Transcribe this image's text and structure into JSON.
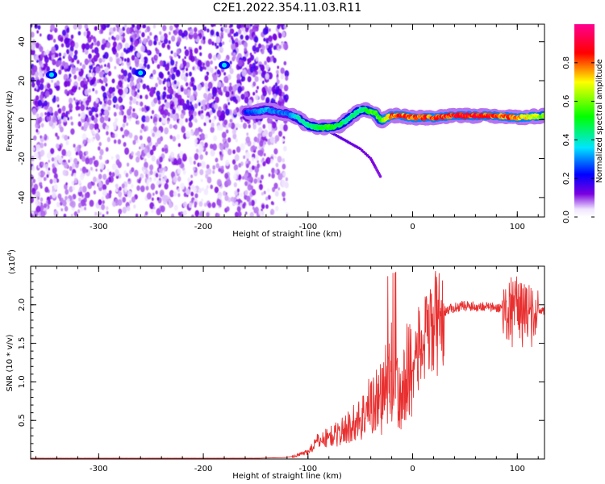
{
  "title": "C2E1.2022.354.11.03.R11",
  "chart_data": [
    {
      "type": "heatmap",
      "xlabel": "Height of straight line (km)",
      "ylabel": "Frequency (Hz)",
      "xlim": [
        -365,
        126
      ],
      "ylim": [
        -50,
        49
      ],
      "xticks": [
        -300,
        -200,
        -100,
        0,
        100
      ],
      "yticks": [
        -40,
        -20,
        0,
        20,
        40
      ],
      "colorbar": {
        "label": "Normalized spectral amplitude",
        "range": [
          0,
          1
        ],
        "ticks": [
          0.0,
          0.2,
          0.4,
          0.6,
          0.8
        ],
        "colors": [
          "#ffffff",
          "#6600cc",
          "#0000ff",
          "#00ffff",
          "#00ff00",
          "#ffff00",
          "#ff0000",
          "#ff00aa"
        ]
      },
      "noise_region_x": [
        -365,
        -120
      ],
      "track": {
        "x": [
          -160,
          -150,
          -140,
          -130,
          -120,
          -110,
          -100,
          -90,
          -80,
          -70,
          -60,
          -50,
          -45,
          -40,
          -35,
          -30,
          -25,
          -20,
          -10,
          0,
          20,
          40,
          60,
          80,
          100,
          126
        ],
        "y": [
          4,
          4,
          5,
          4,
          3,
          1,
          -3,
          -4,
          -4,
          -3,
          1,
          5,
          5,
          4,
          3,
          -1,
          1,
          2,
          2,
          1,
          1,
          2,
          2,
          2,
          1,
          2
        ],
        "amplitude": [
          0.25,
          0.3,
          0.35,
          0.3,
          0.3,
          0.4,
          0.45,
          0.5,
          0.55,
          0.5,
          0.45,
          0.45,
          0.5,
          0.55,
          0.6,
          0.55,
          0.75,
          0.85,
          0.85,
          0.85,
          0.85,
          0.9,
          0.9,
          0.85,
          0.8,
          0.6
        ]
      },
      "branch": {
        "x": [
          -90,
          -80,
          -70,
          -60,
          -50,
          -40,
          -35,
          -30
        ],
        "y": [
          -4,
          -6,
          -9,
          -12,
          -15,
          -20,
          -25,
          -30
        ]
      },
      "hotspots": {
        "x": [
          -345,
          -260,
          -180
        ],
        "y": [
          23,
          24,
          28
        ]
      }
    },
    {
      "type": "line",
      "xlabel": "Height of straight line (km)",
      "ylabel": "SNR (10 * v/v)",
      "multiplier": "(x10",
      "multiplier_exp": "4",
      "multiplier_close": ")",
      "xlim": [
        -365,
        126
      ],
      "ylim": [
        0,
        2.5
      ],
      "xticks": [
        -300,
        -200,
        -100,
        0,
        100
      ],
      "yticks": [
        0.5,
        1.0,
        1.5,
        2.0
      ],
      "color": "#e83030",
      "series": [
        {
          "x": [
            -365,
            -250,
            -150,
            -120,
            -110,
            -100,
            -90,
            -80,
            -70,
            -60,
            -50,
            -40,
            -30,
            -25,
            -20,
            -15,
            -10,
            -5,
            0,
            5,
            10,
            15,
            20,
            25,
            30,
            40,
            50,
            60,
            70,
            80,
            90,
            95,
            100,
            105,
            110,
            115,
            120,
            126
          ],
          "values": [
            0.01,
            0.01,
            0.01,
            0.02,
            0.05,
            0.1,
            0.25,
            0.3,
            0.35,
            0.45,
            0.55,
            0.75,
            0.85,
            1.0,
            1.15,
            0.9,
            0.8,
            1.2,
            1.3,
            1.45,
            1.55,
            1.65,
            1.8,
            1.85,
            1.92,
            1.97,
            2.0,
            1.98,
            1.99,
            1.96,
            1.98,
            1.95,
            1.97,
            1.95,
            1.96,
            1.95,
            1.94,
            1.93
          ]
        }
      ]
    }
  ]
}
